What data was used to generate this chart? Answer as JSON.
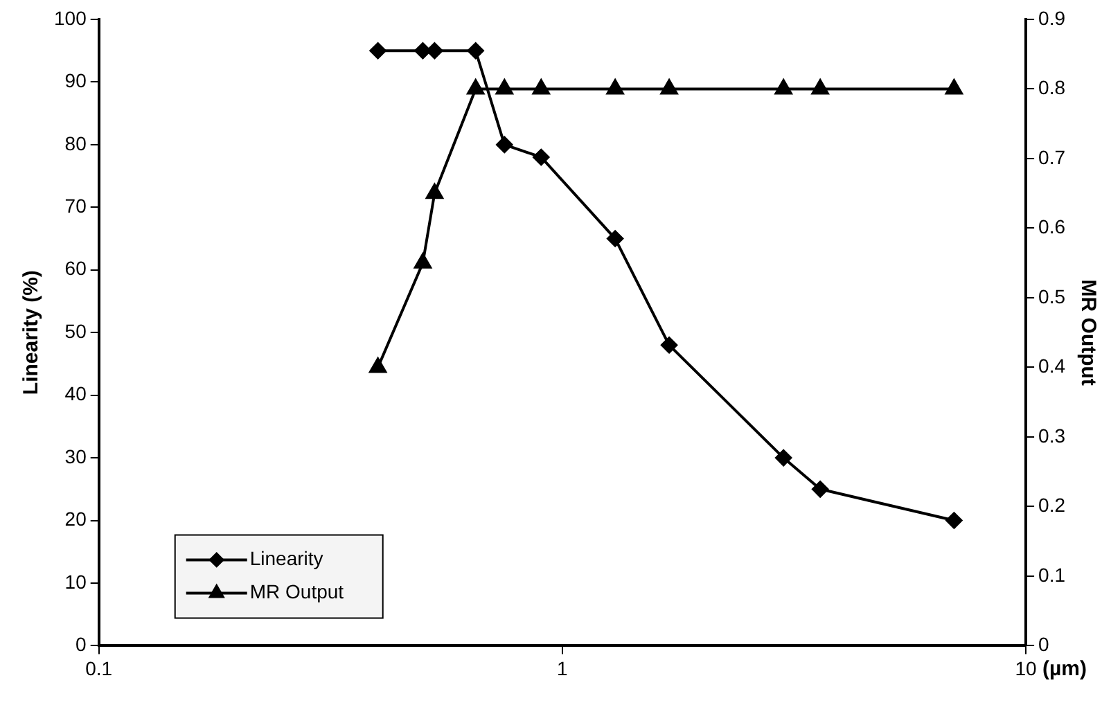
{
  "chart_data": {
    "type": "line",
    "xlabel": "(µm)",
    "ylabel": "Linearity (%)",
    "y2label": "MR Output",
    "x": [
      0.4,
      0.5,
      0.53,
      0.65,
      0.75,
      0.9,
      1.3,
      1.7,
      3,
      3.6,
      7
    ],
    "series": [
      {
        "name": "Linearity",
        "color": "#000000",
        "marker": "diamond",
        "values": [
          95,
          95,
          95,
          95,
          80,
          78,
          65,
          48,
          30,
          25,
          20
        ]
      },
      {
        "name": "MR Output",
        "color": "#000000",
        "marker": "triangle",
        "axis": "y2",
        "values": [
          0.4,
          0.55,
          0.65,
          0.8,
          0.8,
          0.8,
          0.8,
          0.8,
          0.8,
          0.8,
          0.8
        ]
      }
    ],
    "log": "x",
    "xlim": [
      0.1,
      10
    ],
    "xticks": [
      0.1,
      1,
      10
    ],
    "ylim": [
      0,
      100
    ],
    "yticks": [
      0,
      10,
      20,
      30,
      40,
      50,
      60,
      70,
      80,
      90,
      100
    ],
    "y2lim": [
      0,
      0.9
    ],
    "y2ticks": [
      0,
      0.1,
      0.2,
      0.3,
      0.4,
      0.5,
      0.6,
      0.7,
      0.8,
      0.9
    ],
    "grid": false,
    "legend": "bottom left",
    "line_style": "solid"
  }
}
